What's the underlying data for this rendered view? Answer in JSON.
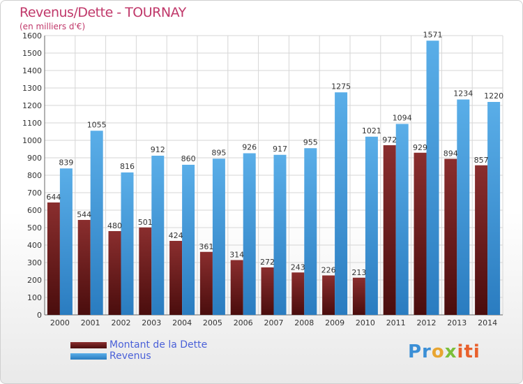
{
  "title": "Revenus/Dette - TOURNAY",
  "subtitle": "(en milliers d'€)",
  "legend": {
    "dette": "Montant de la Dette",
    "revenus": "Revenus"
  },
  "logo": {
    "part1": "Pr",
    "part2": "o",
    "part3": "x",
    "part4": "iti"
  },
  "colors": {
    "dette": "#7a2424",
    "revenus": "#4a9fe0",
    "grid": "#d6d6d6",
    "text": "#333333"
  },
  "chart_data": {
    "type": "bar",
    "categories": [
      "2000",
      "2001",
      "2002",
      "2003",
      "2004",
      "2005",
      "2006",
      "2007",
      "2008",
      "2009",
      "2010",
      "2011",
      "2012",
      "2013",
      "2014"
    ],
    "series": [
      {
        "name": "Montant de la Dette",
        "values": [
          644,
          544,
          480,
          501,
          424,
          361,
          314,
          272,
          243,
          226,
          213,
          972,
          929,
          894,
          857
        ]
      },
      {
        "name": "Revenus",
        "values": [
          839,
          1055,
          816,
          912,
          860,
          895,
          926,
          917,
          955,
          1275,
          1021,
          1094,
          1571,
          1234,
          1220
        ]
      }
    ],
    "ylim": [
      0,
      1600
    ],
    "yticks": [
      0,
      100,
      200,
      300,
      400,
      500,
      600,
      700,
      800,
      900,
      1000,
      1100,
      1200,
      1300,
      1400,
      1500,
      1600
    ],
    "grid": true,
    "legend_position": "bottom-left"
  }
}
